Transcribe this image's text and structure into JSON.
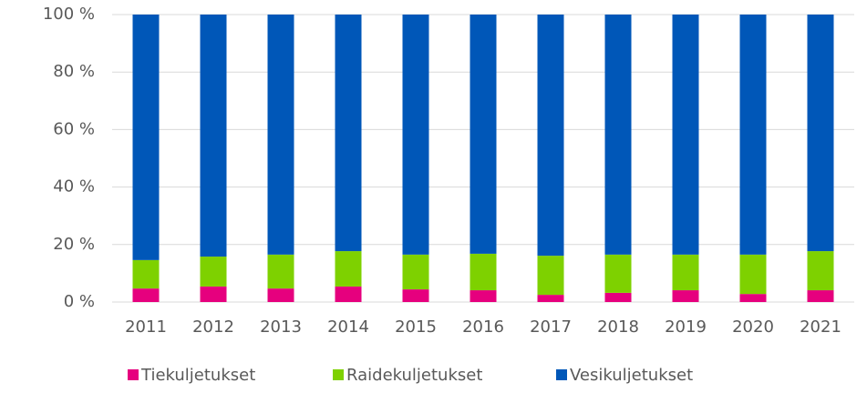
{
  "chart_data": {
    "type": "stacked_bar",
    "categories": [
      "2011",
      "2012",
      "2013",
      "2014",
      "2015",
      "2016",
      "2017",
      "2018",
      "2019",
      "2020",
      "2021"
    ],
    "series": [
      {
        "name": "Tiekuljetukset",
        "color": "#e6007e",
        "values": [
          4.7,
          5.4,
          4.7,
          5.4,
          4.4,
          4.1,
          2.5,
          3.2,
          4.1,
          2.8,
          4.1
        ]
      },
      {
        "name": "Raidekuljetukset",
        "color": "#7ed100",
        "values": [
          9.9,
          10.4,
          11.8,
          12.3,
          12.1,
          12.7,
          13.6,
          13.3,
          12.4,
          13.7,
          13.6
        ]
      },
      {
        "name": "Vesikuljetukset",
        "color": "#0057b8",
        "values": [
          85.4,
          84.2,
          83.5,
          82.3,
          83.5,
          83.2,
          83.9,
          83.5,
          83.5,
          83.5,
          82.3
        ]
      }
    ],
    "ylim": [
      0,
      100
    ],
    "yticks": [
      {
        "value": 0,
        "label": "0 %"
      },
      {
        "value": 20,
        "label": "20 %"
      },
      {
        "value": 40,
        "label": "40 %"
      },
      {
        "value": 60,
        "label": "60 %"
      },
      {
        "value": 80,
        "label": "80 %"
      },
      {
        "value": 100,
        "label": "100 %"
      }
    ],
    "grid": true,
    "legend": "bottom"
  }
}
